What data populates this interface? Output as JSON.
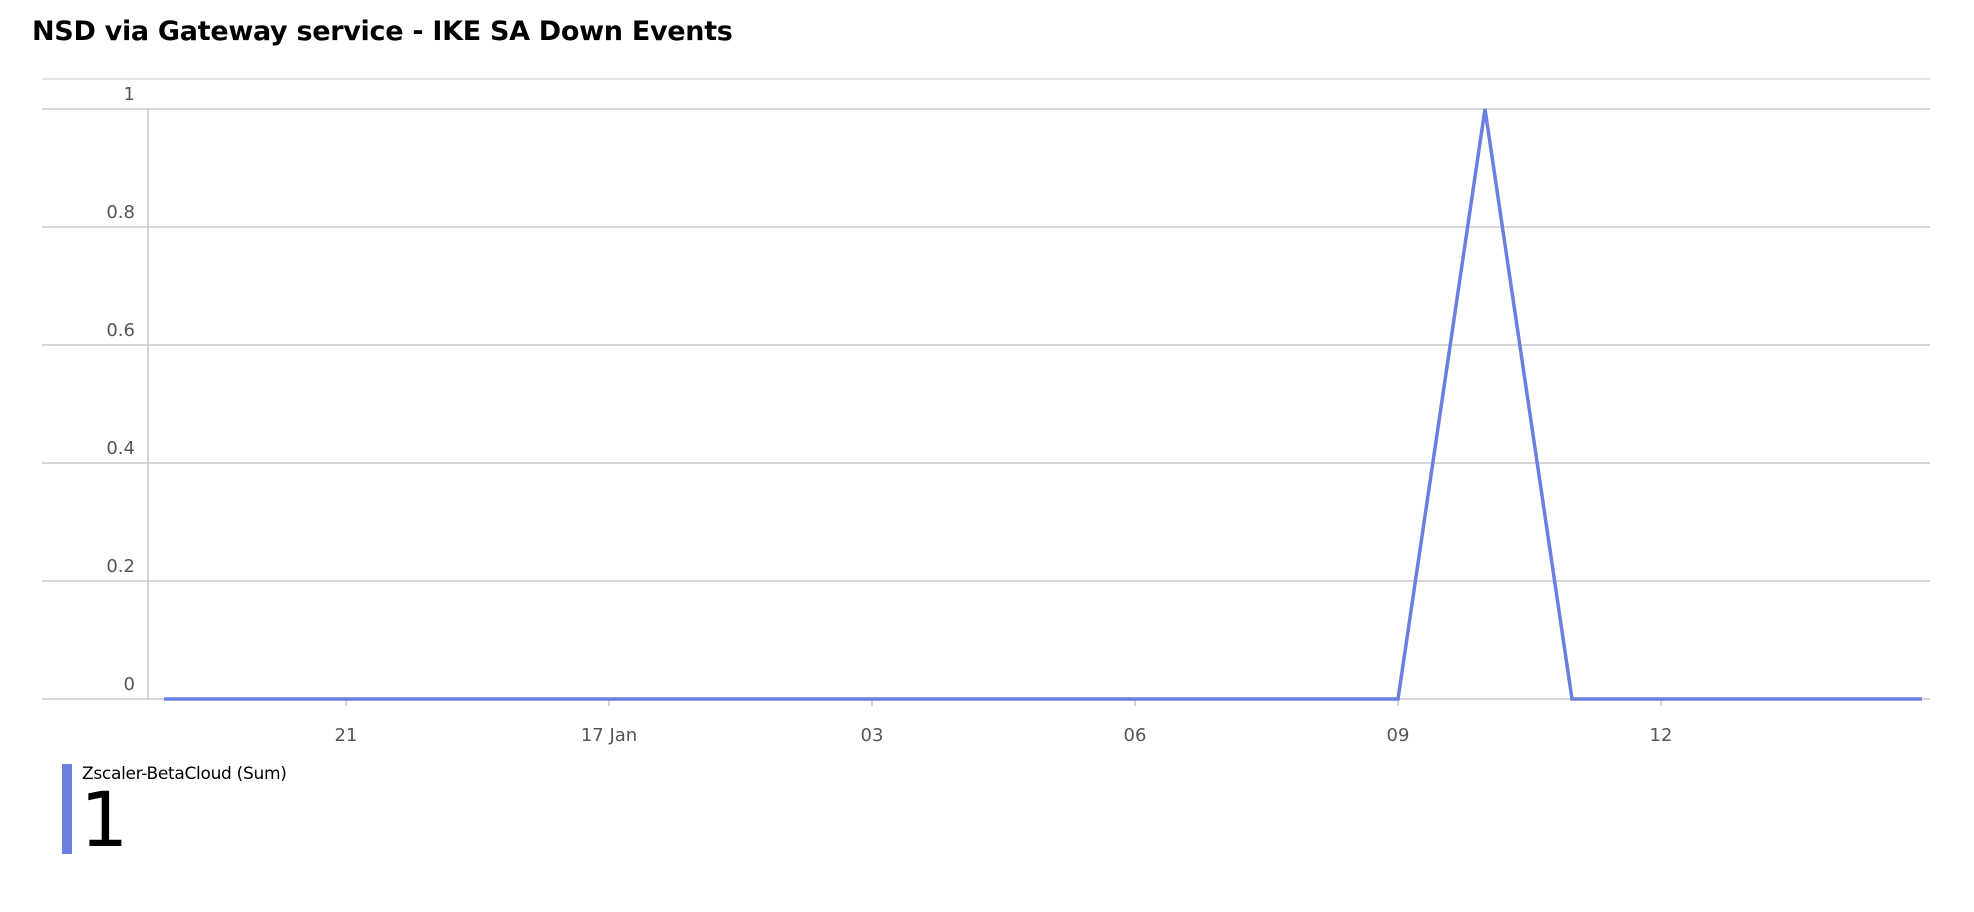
{
  "title": "NSD via Gateway service - IKE SA Down Events",
  "chart_data": {
    "type": "line",
    "title": "NSD via Gateway service - IKE SA Down Events",
    "xlabel": "",
    "ylabel": "",
    "ylim": [
      0,
      1
    ],
    "yticks": [
      "0",
      "0.2",
      "0.4",
      "0.6",
      "0.8",
      "1"
    ],
    "xticks": [
      "21",
      "17 Jan",
      "03",
      "06",
      "09",
      "12"
    ],
    "grid": true,
    "series": [
      {
        "name": "Zscaler-BetaCloud (Sum)",
        "color": "#6a7fe0",
        "x": [
          "start",
          "21",
          "17 Jan",
          "03",
          "06",
          "09",
          "10",
          "11",
          "12",
          "end"
        ],
        "values": [
          0,
          0,
          0,
          0,
          0,
          0,
          1,
          0,
          0,
          0
        ]
      }
    ]
  },
  "legend": {
    "name": "Zscaler-BetaCloud (Sum)",
    "value": "1",
    "color": "#6a7fe0"
  }
}
